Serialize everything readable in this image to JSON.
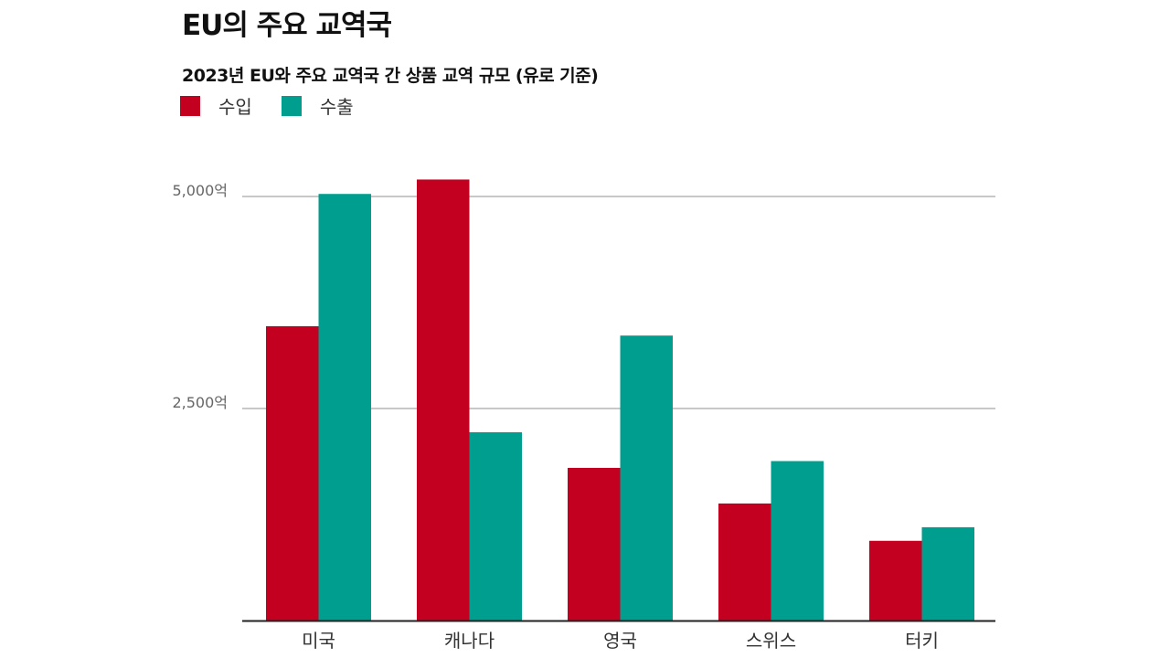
{
  "chart_data": {
    "type": "bar",
    "title": "EU의 주요 교역국",
    "subtitle": "2023년 EU와 주요 교역국 간 상품 교역 규모 (유로 기준)",
    "categories": [
      "미국",
      "캐나다",
      "영국",
      "스위스",
      "터키"
    ],
    "series": [
      {
        "name": "수입",
        "color": "#c40020",
        "values": [
          3470,
          5200,
          1800,
          1380,
          940
        ]
      },
      {
        "name": "수출",
        "color": "#009e8e",
        "values": [
          5030,
          2220,
          3360,
          1880,
          1100
        ]
      }
    ],
    "yticks": [
      {
        "value": 2500,
        "label": "2,500억"
      },
      {
        "value": 5000,
        "label": "5,000억"
      }
    ],
    "ylim": [
      0,
      5000
    ],
    "grid": true,
    "legend_position": "top-left"
  }
}
